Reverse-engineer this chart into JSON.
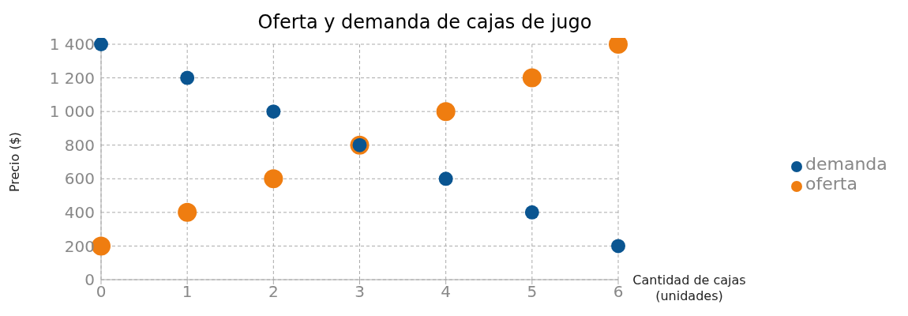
{
  "chart_data": {
    "type": "scatter",
    "title": "Oferta y demanda de cajas de jugo",
    "xlabel": "Cantidad de cajas\n(unidades)",
    "ylabel": "Precio ($)",
    "x": [
      0,
      1,
      2,
      3,
      4,
      5,
      6
    ],
    "series": [
      {
        "name": "oferta",
        "color": "#ef7d10",
        "values": [
          200,
          400,
          600,
          800,
          1000,
          1200,
          1400
        ]
      },
      {
        "name": "demanda",
        "color": "#0a5591",
        "values": [
          1400,
          1200,
          1000,
          800,
          600,
          400,
          200
        ]
      }
    ],
    "xlim": [
      0,
      6
    ],
    "xticks": [
      0,
      1,
      2,
      3,
      4,
      5,
      6
    ],
    "ylim": [
      0,
      1400
    ],
    "yticks": [
      0,
      200,
      400,
      600,
      800,
      {
        "value": 1000,
        "label": "1 000"
      },
      {
        "value": 1200,
        "label": "1 200"
      },
      {
        "value": 1400,
        "label": "1 400"
      }
    ],
    "grid": true,
    "legend": "right",
    "marker": "circle"
  }
}
